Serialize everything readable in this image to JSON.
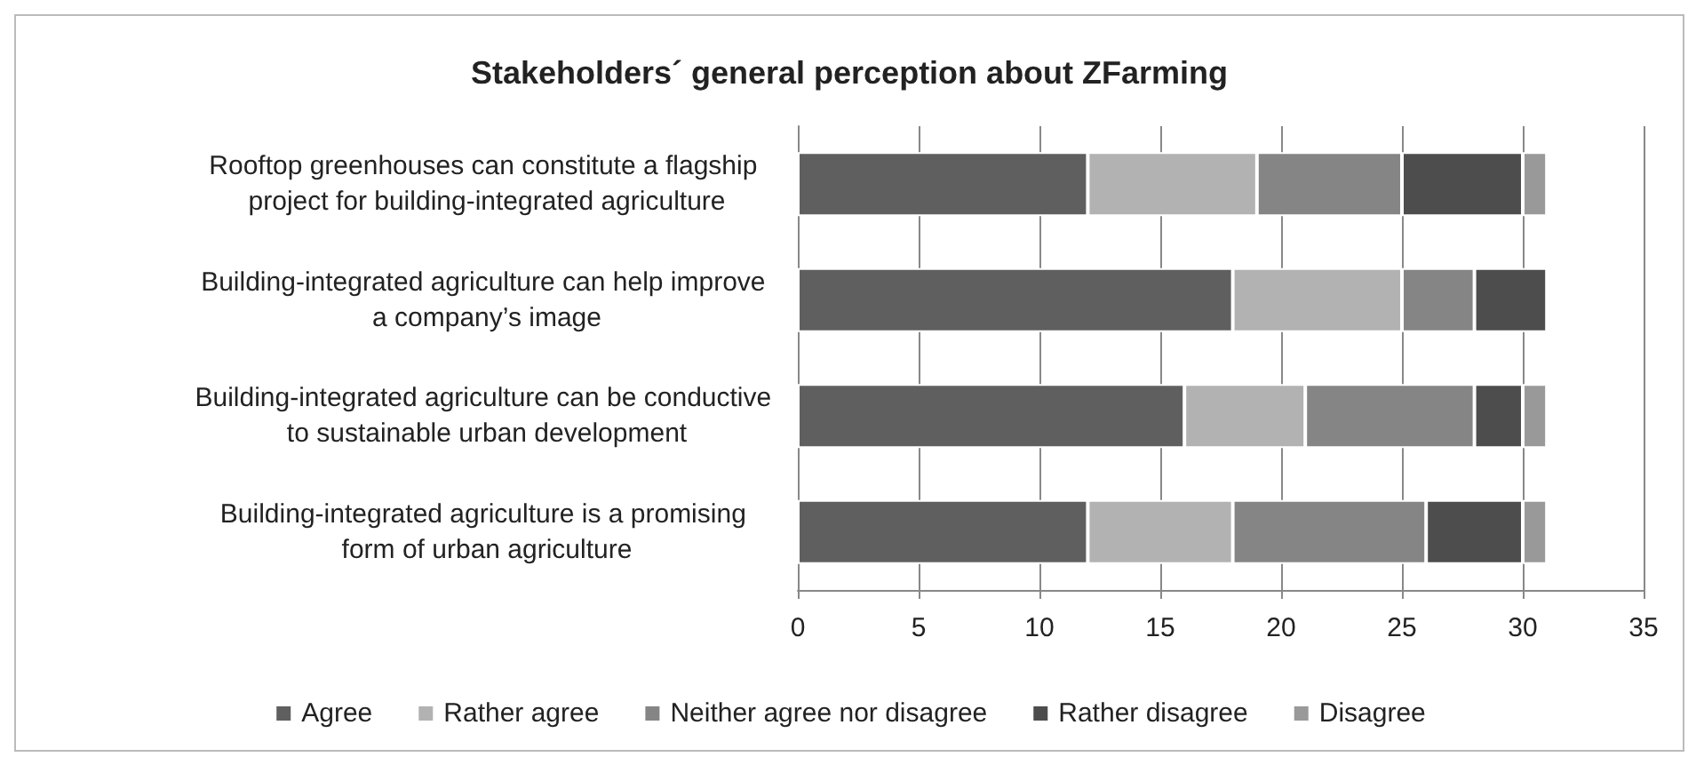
{
  "chart_data": {
    "type": "bar",
    "orientation": "horizontal",
    "stacked": true,
    "title": "Stakeholders´ general perception about ZFarming",
    "categories": [
      "Rooftop greenhouses can constitute a flagship project for building-integrated agriculture",
      "Building-integrated agriculture can help improve a company’s image",
      "Building-integrated agriculture can be conductive to sustainable urban development",
      "Building-integrated agriculture is a promising form of urban agriculture"
    ],
    "series": [
      {
        "name": "Agree",
        "color": "#5f5f5f",
        "values": [
          12,
          18,
          16,
          12
        ]
      },
      {
        "name": "Rather agree",
        "color": "#b2b2b2",
        "values": [
          7,
          7,
          5,
          6
        ]
      },
      {
        "name": "Neither agree nor disagree",
        "color": "#858585",
        "values": [
          6,
          3,
          7,
          8
        ]
      },
      {
        "name": "Rather disagree",
        "color": "#4d4d4d",
        "values": [
          5,
          3,
          2,
          4
        ]
      },
      {
        "name": "Disagree",
        "color": "#999999",
        "values": [
          1,
          0,
          1,
          1
        ]
      }
    ],
    "xlim": [
      0,
      35
    ],
    "xticks": [
      0,
      5,
      10,
      15,
      20,
      25,
      30,
      35
    ],
    "grid": "x",
    "legend": "bottom"
  }
}
